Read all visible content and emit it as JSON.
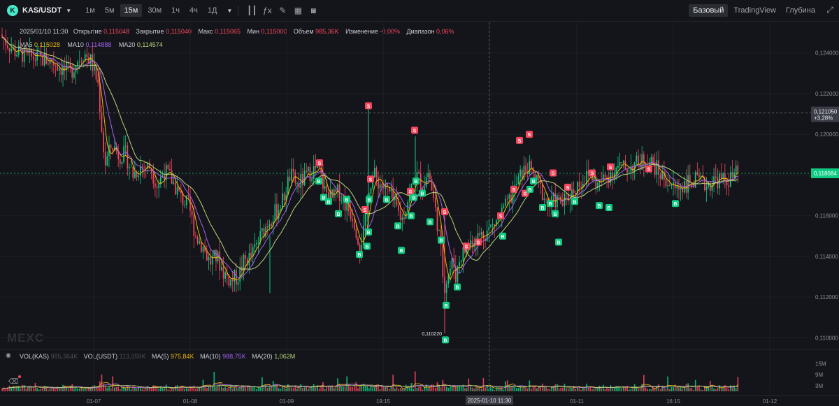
{
  "toolbar": {
    "symbol": "KAS/USDT",
    "timeframes": [
      "1м",
      "5м",
      "15м",
      "30м",
      "1ч",
      "4ч",
      "1Д"
    ],
    "active_timeframe": "15м",
    "tools": [
      "candle-type-icon",
      "indicator-icon",
      "draw-icon",
      "layout-icon",
      "screenshot-icon"
    ],
    "views": [
      "Базовый",
      "TradingView",
      "Глубина"
    ],
    "active_view": "Базовый"
  },
  "info": {
    "date": "2025/01/10 11:30",
    "open_label": "Открытие",
    "open": "0,115048",
    "close_label": "Закрытие",
    "close": "0,115040",
    "high_label": "Макс",
    "high": "0,115065",
    "low_label": "Мин",
    "low": "0,115000",
    "vol_label": "Объем",
    "vol": "985,36K",
    "change_label": "Изменение",
    "change": "-0,00%",
    "range_label": "Диапазон",
    "range": "0,06%"
  },
  "ma": {
    "ma5_label": "MA5",
    "ma5": "0,115028",
    "ma10_label": "MA10",
    "ma10": "0,114888",
    "ma20_label": "MA20",
    "ma20": "0,114574"
  },
  "volume_legend": {
    "kas_label": "VOL(KAS)",
    "kas": "985,364K",
    "usdt_label": "VOL(USDT)",
    "usdt": "113,359K",
    "ma5_label": "MA(5)",
    "ma5": "975,84K",
    "ma10_label": "MA(10)",
    "ma10": "988,75K",
    "ma20_label": "MA(20)",
    "ma20": "1,062M"
  },
  "watermark": "MEXC",
  "colors": {
    "up": "#0ecb81",
    "down": "#f6465d",
    "ma5": "#f0b90b",
    "ma10": "#a461f2",
    "ma20": "#b8d67b",
    "bg": "#14151a"
  },
  "chart_data": {
    "type": "candlestick",
    "price_axis": {
      "ticks": [
        0.124,
        0.122,
        0.12,
        0.118,
        0.116,
        0.114,
        0.112,
        0.11
      ],
      "tick_labels": [
        "0,124000",
        "0,122000",
        "0,120000",
        "0,118000",
        "0,116000",
        "0,114000",
        "0,112000",
        "0,110000"
      ],
      "ylim": [
        0.1095,
        0.1255
      ]
    },
    "volume_axis": {
      "ticks": [
        15,
        9,
        3
      ],
      "tick_labels": [
        "15M",
        "9M",
        "3M"
      ],
      "unit": "M"
    },
    "time_axis": {
      "tick_labels": [
        "01-07",
        "01-08",
        "01-09",
        "19:15",
        "2025-01-10 11:30",
        "01-11",
        "16:15",
        "01-12"
      ],
      "crosshair_label": "2025-01-10 11:30"
    },
    "crosshair_price": {
      "label": "0,121050",
      "change": "+3,28%",
      "value": 0.12105
    },
    "last_price": {
      "label": "0,118084",
      "value": 0.118084
    },
    "min_label": {
      "label": "0,110220",
      "value": 0.11022
    },
    "keypoints": [
      [
        0,
        0.1249
      ],
      [
        20,
        0.1241
      ],
      [
        40,
        0.1238
      ],
      [
        60,
        0.1237
      ],
      [
        75,
        0.1236
      ],
      [
        90,
        0.1232
      ],
      [
        100,
        0.123
      ],
      [
        110,
        0.1236
      ],
      [
        120,
        0.124
      ],
      [
        130,
        0.1236
      ],
      [
        140,
        0.1225
      ],
      [
        150,
        0.1185
      ],
      [
        160,
        0.1195
      ],
      [
        170,
        0.119
      ],
      [
        180,
        0.119
      ],
      [
        190,
        0.118
      ],
      [
        200,
        0.1184
      ],
      [
        215,
        0.1184
      ],
      [
        225,
        0.1175
      ],
      [
        235,
        0.1182
      ],
      [
        245,
        0.1178
      ],
      [
        260,
        0.1168
      ],
      [
        270,
        0.1165
      ],
      [
        280,
        0.115
      ],
      [
        290,
        0.1145
      ],
      [
        300,
        0.1137
      ],
      [
        310,
        0.114
      ],
      [
        320,
        0.1132
      ],
      [
        330,
        0.1128
      ],
      [
        340,
        0.113
      ],
      [
        350,
        0.1138
      ],
      [
        360,
        0.114
      ],
      [
        370,
        0.1148
      ],
      [
        385,
        0.1158
      ],
      [
        395,
        0.1162
      ],
      [
        405,
        0.1168
      ],
      [
        415,
        0.118
      ],
      [
        425,
        0.1175
      ],
      [
        435,
        0.1178
      ],
      [
        445,
        0.1182
      ],
      [
        455,
        0.1183
      ],
      [
        465,
        0.1172
      ],
      [
        475,
        0.1168
      ],
      [
        485,
        0.1172
      ],
      [
        495,
        0.1165
      ],
      [
        505,
        0.116
      ],
      [
        515,
        0.1145
      ],
      [
        522,
        0.1155
      ],
      [
        528,
        0.1175
      ],
      [
        535,
        0.118
      ],
      [
        545,
        0.1175
      ],
      [
        555,
        0.1172
      ],
      [
        565,
        0.1165
      ],
      [
        575,
        0.1158
      ],
      [
        585,
        0.117
      ],
      [
        595,
        0.118
      ],
      [
        605,
        0.1175
      ],
      [
        613,
        0.1182
      ],
      [
        620,
        0.1168
      ],
      [
        625,
        0.1158
      ],
      [
        630,
        0.1145
      ],
      [
        635,
        0.1125
      ],
      [
        640,
        0.113
      ],
      [
        648,
        0.1138
      ],
      [
        652,
        0.113
      ],
      [
        658,
        0.114
      ],
      [
        665,
        0.1143
      ],
      [
        675,
        0.1148
      ],
      [
        685,
        0.115
      ],
      [
        695,
        0.1152
      ],
      [
        705,
        0.1155
      ],
      [
        715,
        0.116
      ],
      [
        725,
        0.1165
      ],
      [
        735,
        0.1172
      ],
      [
        745,
        0.118
      ],
      [
        755,
        0.1184
      ],
      [
        765,
        0.1178
      ],
      [
        775,
        0.1172
      ],
      [
        785,
        0.1165
      ],
      [
        795,
        0.1168
      ],
      [
        805,
        0.1166
      ],
      [
        815,
        0.117
      ],
      [
        825,
        0.1175
      ],
      [
        835,
        0.1178
      ],
      [
        845,
        0.118
      ],
      [
        855,
        0.1175
      ],
      [
        865,
        0.1178
      ],
      [
        875,
        0.1182
      ],
      [
        885,
        0.1184
      ],
      [
        895,
        0.1183
      ],
      [
        905,
        0.1185
      ],
      [
        915,
        0.1186
      ],
      [
        925,
        0.1188
      ],
      [
        935,
        0.1185
      ],
      [
        945,
        0.118
      ],
      [
        955,
        0.1177
      ],
      [
        965,
        0.1173
      ],
      [
        975,
        0.1175
      ],
      [
        985,
        0.1176
      ],
      [
        995,
        0.1177
      ],
      [
        1005,
        0.1175
      ],
      [
        1015,
        0.1176
      ],
      [
        1025,
        0.1178
      ],
      [
        1035,
        0.1177
      ],
      [
        1045,
        0.1178
      ],
      [
        1055,
        0.1181
      ]
    ],
    "signals": [
      {
        "t": "S",
        "x": 527,
        "p": 0.1214
      },
      {
        "t": "S",
        "x": 457,
        "p": 0.1186
      },
      {
        "t": "S",
        "x": 593,
        "p": 0.1202
      },
      {
        "t": "S",
        "x": 530,
        "p": 0.1178
      },
      {
        "t": "S",
        "x": 587,
        "p": 0.1172
      },
      {
        "t": "S",
        "x": 743,
        "p": 0.1197
      },
      {
        "t": "S",
        "x": 757,
        "p": 0.12
      },
      {
        "t": "S",
        "x": 847,
        "p": 0.1181
      },
      {
        "t": "S",
        "x": 873,
        "p": 0.1184
      },
      {
        "t": "S",
        "x": 791,
        "p": 0.1181
      },
      {
        "t": "S",
        "x": 735,
        "p": 0.1173
      },
      {
        "t": "S",
        "x": 751,
        "p": 0.1171
      },
      {
        "t": "S",
        "x": 812,
        "p": 0.1174
      },
      {
        "t": "S",
        "x": 636,
        "p": 0.1162
      },
      {
        "t": "S",
        "x": 684,
        "p": 0.1147
      },
      {
        "t": "S",
        "x": 667,
        "p": 0.1145
      },
      {
        "t": "S",
        "x": 716,
        "p": 0.116
      },
      {
        "t": "S",
        "x": 522,
        "p": 0.1163
      },
      {
        "t": "S",
        "x": 928,
        "p": 0.1183
      },
      {
        "t": "B",
        "x": 456,
        "p": 0.1177
      },
      {
        "t": "B",
        "x": 463,
        "p": 0.1169
      },
      {
        "t": "B",
        "x": 470,
        "p": 0.1167
      },
      {
        "t": "B",
        "x": 484,
        "p": 0.1161
      },
      {
        "t": "B",
        "x": 496,
        "p": 0.1168
      },
      {
        "t": "B",
        "x": 528,
        "p": 0.1168
      },
      {
        "t": "B",
        "x": 527,
        "p": 0.1152
      },
      {
        "t": "B",
        "x": 525,
        "p": 0.1145
      },
      {
        "t": "B",
        "x": 514,
        "p": 0.1141
      },
      {
        "t": "B",
        "x": 553,
        "p": 0.1168
      },
      {
        "t": "B",
        "x": 569,
        "p": 0.1155
      },
      {
        "t": "B",
        "x": 574,
        "p": 0.1143
      },
      {
        "t": "B",
        "x": 595,
        "p": 0.1177
      },
      {
        "t": "B",
        "x": 604,
        "p": 0.1171
      },
      {
        "t": "B",
        "x": 592,
        "p": 0.1169
      },
      {
        "t": "B",
        "x": 588,
        "p": 0.116
      },
      {
        "t": "B",
        "x": 615,
        "p": 0.1157
      },
      {
        "t": "B",
        "x": 631,
        "p": 0.1148
      },
      {
        "t": "B",
        "x": 638,
        "p": 0.1116
      },
      {
        "t": "B",
        "x": 654,
        "p": 0.1125
      },
      {
        "t": "B",
        "x": 637,
        "p": 0.1099
      },
      {
        "t": "B",
        "x": 719,
        "p": 0.115
      },
      {
        "t": "B",
        "x": 763,
        "p": 0.1177
      },
      {
        "t": "B",
        "x": 776,
        "p": 0.1164
      },
      {
        "t": "B",
        "x": 794,
        "p": 0.1161
      },
      {
        "t": "B",
        "x": 799,
        "p": 0.1147
      },
      {
        "t": "B",
        "x": 787,
        "p": 0.1166
      },
      {
        "t": "B",
        "x": 758,
        "p": 0.1173
      },
      {
        "t": "B",
        "x": 822,
        "p": 0.1167
      },
      {
        "t": "B",
        "x": 857,
        "p": 0.1165
      },
      {
        "t": "B",
        "x": 871,
        "p": 0.1164
      },
      {
        "t": "B",
        "x": 966,
        "p": 0.1166
      }
    ]
  }
}
